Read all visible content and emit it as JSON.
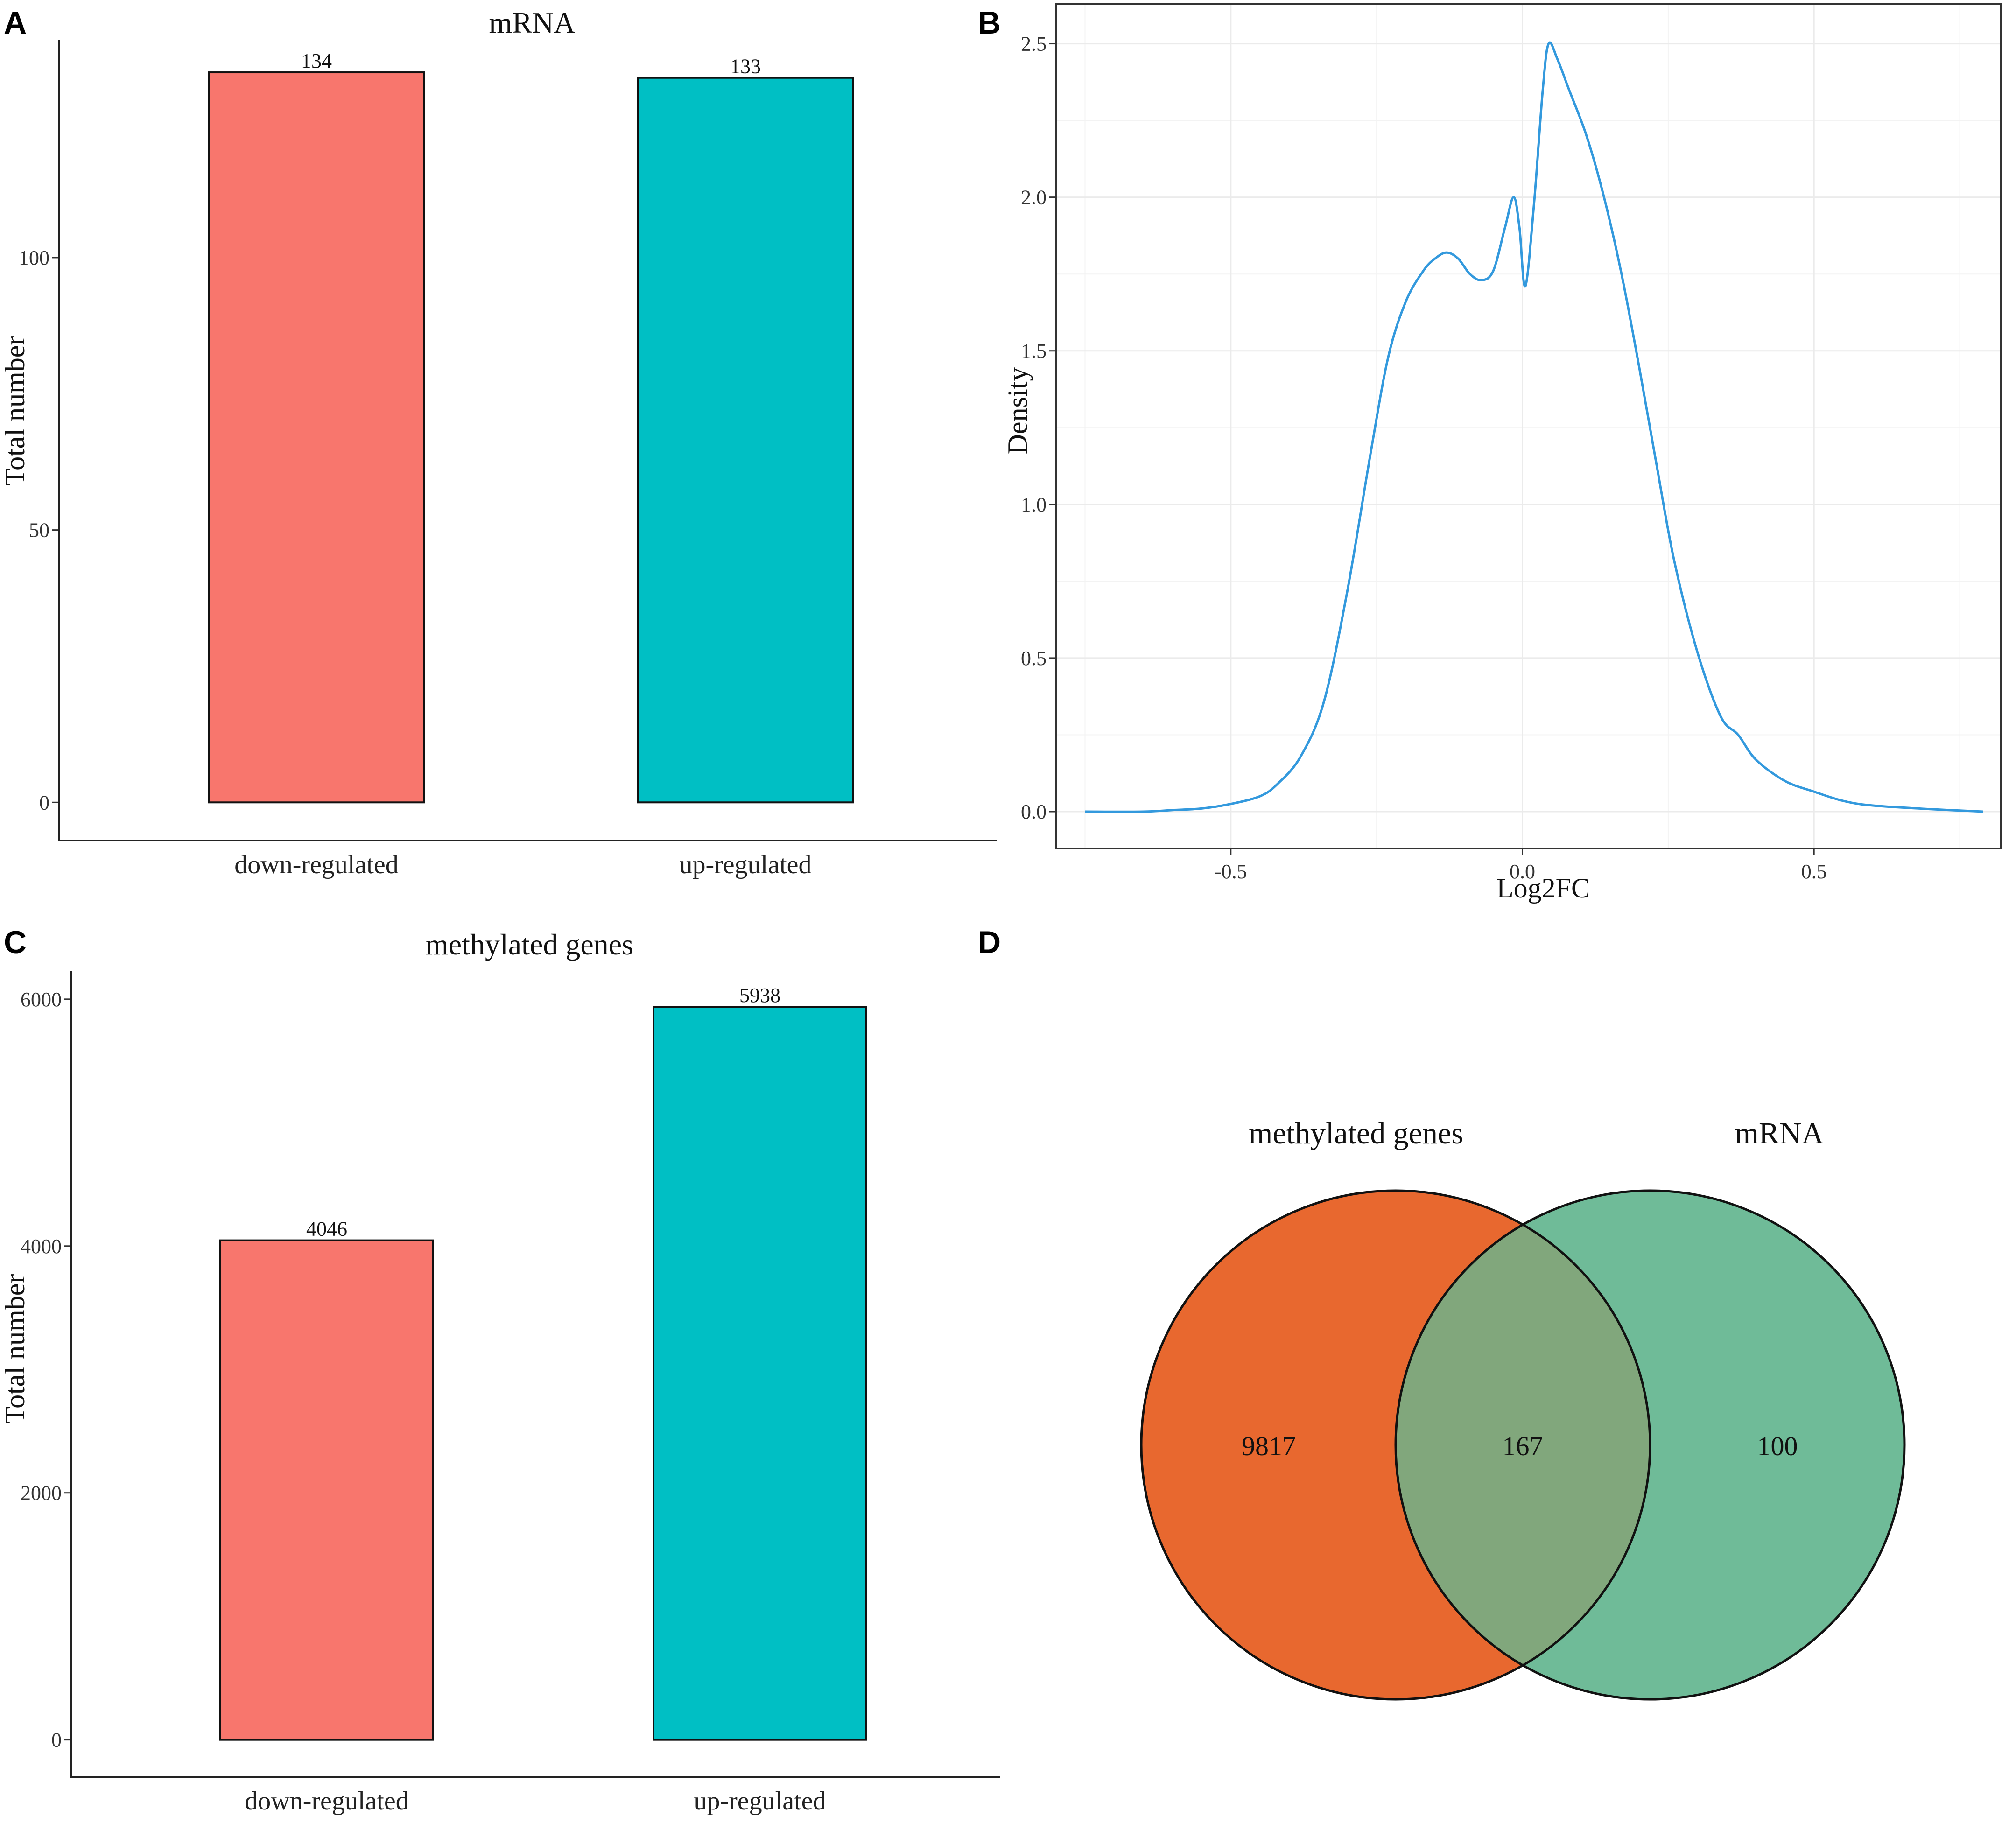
{
  "colors": {
    "down": "#f8766d",
    "up": "#00bfc4",
    "density_line": "#3399dd",
    "grid": "#ebebeb",
    "venn_left": "#e8682f",
    "venn_right": "#6fbb98"
  },
  "chart_data": [
    {
      "panel": "A",
      "type": "bar",
      "title": "mRNA",
      "xlabel": "",
      "ylabel": "Total number",
      "categories": [
        "down-regulated",
        "up-regulated"
      ],
      "values": [
        134,
        133
      ],
      "value_labels": [
        "134",
        "133"
      ],
      "ylim": [
        -7,
        140
      ],
      "yticks": [
        0,
        50,
        100
      ],
      "ytick_labels": [
        "0",
        "50",
        "100"
      ]
    },
    {
      "panel": "B",
      "type": "line",
      "title": "",
      "xlabel": "Log2FC",
      "ylabel": "Density",
      "xlim": [
        -0.8,
        0.82
      ],
      "ylim": [
        -0.12,
        2.63
      ],
      "xticks": [
        -0.5,
        0.0,
        0.5
      ],
      "xtick_labels": [
        "-0.5",
        "0.0",
        "0.5"
      ],
      "yticks": [
        0.0,
        0.5,
        1.0,
        1.5,
        2.0,
        2.5
      ],
      "ytick_labels": [
        "0.0",
        "0.5",
        "1.0",
        "1.5",
        "2.0",
        "2.5"
      ],
      "grid": true,
      "series": [
        {
          "name": "Log2FC density",
          "x": [
            -0.75,
            -0.65,
            -0.6,
            -0.55,
            -0.5,
            -0.45,
            -0.42,
            -0.38,
            -0.34,
            -0.3,
            -0.26,
            -0.23,
            -0.2,
            -0.17,
            -0.15,
            -0.13,
            -0.11,
            -0.09,
            -0.07,
            -0.05,
            -0.03,
            -0.015,
            -0.005,
            0.005,
            0.02,
            0.035,
            0.045,
            0.06,
            0.08,
            0.11,
            0.14,
            0.17,
            0.2,
            0.23,
            0.26,
            0.3,
            0.34,
            0.37,
            0.4,
            0.45,
            0.5,
            0.55,
            0.6,
            0.7,
            0.79
          ],
          "y": [
            0.0,
            0.0,
            0.005,
            0.01,
            0.025,
            0.05,
            0.09,
            0.18,
            0.36,
            0.72,
            1.17,
            1.48,
            1.66,
            1.76,
            1.8,
            1.82,
            1.8,
            1.75,
            1.73,
            1.76,
            1.9,
            2.0,
            1.9,
            1.71,
            1.98,
            2.35,
            2.5,
            2.45,
            2.35,
            2.2,
            2.0,
            1.75,
            1.45,
            1.13,
            0.82,
            0.52,
            0.31,
            0.25,
            0.17,
            0.1,
            0.065,
            0.035,
            0.02,
            0.008,
            0.0
          ]
        }
      ]
    },
    {
      "panel": "C",
      "type": "bar",
      "title": "methylated genes",
      "xlabel": "",
      "ylabel": "Total number",
      "categories": [
        "down-regulated",
        "up-regulated"
      ],
      "values": [
        4046,
        5938
      ],
      "value_labels": [
        "4046",
        "5938"
      ],
      "ylim": [
        -300,
        6230
      ],
      "yticks": [
        0,
        2000,
        4000,
        6000
      ],
      "ytick_labels": [
        "0",
        "2000",
        "4000",
        "6000"
      ]
    },
    {
      "panel": "D",
      "type": "venn",
      "sets": [
        "methylated genes",
        "mRNA"
      ],
      "only_left": 9817,
      "intersection": 167,
      "only_right": 100,
      "value_labels": [
        "9817",
        "167",
        "100"
      ]
    }
  ],
  "panels": {
    "a": {
      "letter": "A"
    },
    "b": {
      "letter": "B"
    },
    "c": {
      "letter": "C"
    },
    "d": {
      "letter": "D"
    }
  }
}
